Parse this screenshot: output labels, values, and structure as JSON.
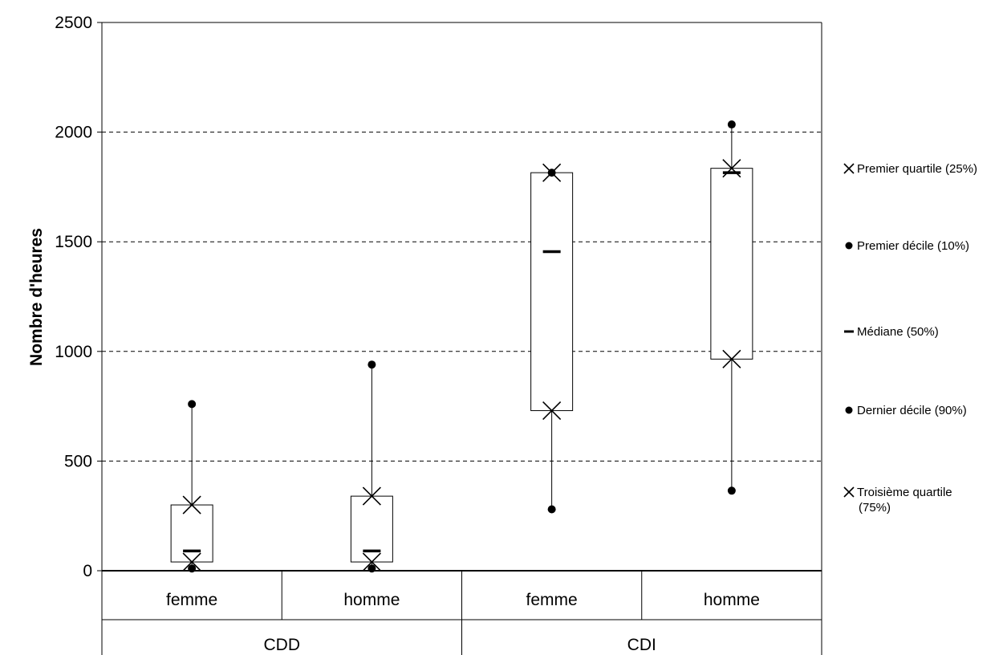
{
  "chart_data": {
    "type": "boxplot",
    "ylabel": "Nombre d'heures",
    "ylim": [
      0,
      2500
    ],
    "yticks": [
      0,
      500,
      1000,
      1500,
      2000,
      2500
    ],
    "grid": "horizontal dashed",
    "legend_position": "right",
    "groups": [
      {
        "label": "CDD",
        "categories": [
          {
            "label": "femme",
            "p10": 10,
            "q1": 40,
            "median": 90,
            "q3": 300,
            "p90": 760
          },
          {
            "label": "homme",
            "p10": 10,
            "q1": 40,
            "median": 90,
            "q3": 340,
            "p90": 940
          }
        ]
      },
      {
        "label": "CDI",
        "categories": [
          {
            "label": "femme",
            "p10": 280,
            "q1": 730,
            "median": 1455,
            "q3": 1815,
            "p90": 1815
          },
          {
            "label": "homme",
            "p10": 365,
            "q1": 965,
            "median": 1815,
            "q3": 1835,
            "p90": 2035
          }
        ]
      }
    ],
    "legend": [
      {
        "marker": "x",
        "label": "Premier quartile (25%)"
      },
      {
        "marker": "dot",
        "label": "Premier décile (10%)"
      },
      {
        "marker": "dash",
        "label": "Médiane (50%)"
      },
      {
        "marker": "dot",
        "label": "Dernier décile (90%)"
      },
      {
        "marker": "x",
        "label": "Troisième quartile (75%)",
        "lines": [
          "Troisième quartile",
          "(75%)"
        ]
      }
    ]
  }
}
